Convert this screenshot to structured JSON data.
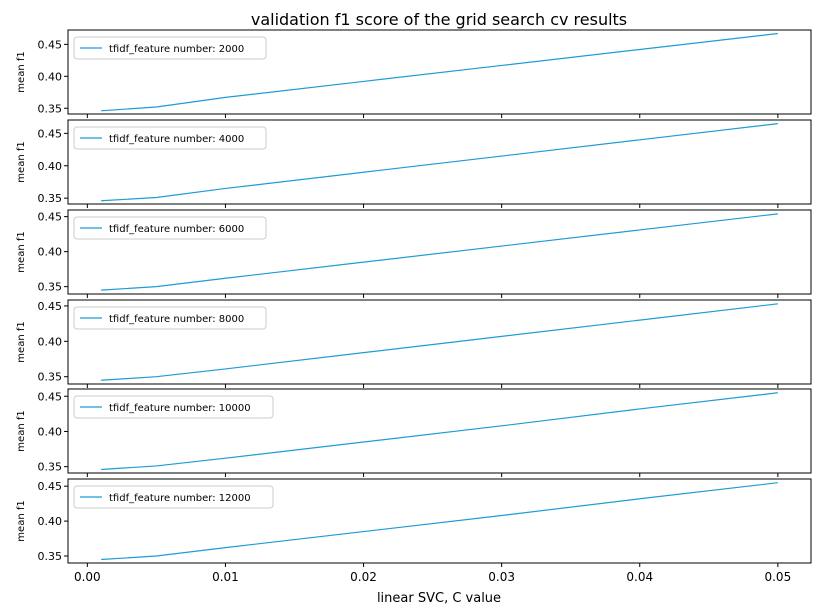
{
  "title": "validation f1 score of the grid search cv results",
  "chart_data": {
    "type": "line",
    "title": "validation f1 score of the grid search cv results",
    "xlabel": "linear SVC, C value",
    "ylabel": "mean f1",
    "x": [
      0.001,
      0.005,
      0.01,
      0.02,
      0.03,
      0.04,
      0.05
    ],
    "xlim": [
      -0.0014,
      0.0524
    ],
    "xticks": [
      0.0,
      0.01,
      0.02,
      0.03,
      0.04,
      0.05
    ],
    "xtick_labels": [
      "0.00",
      "0.01",
      "0.02",
      "0.03",
      "0.04",
      "0.05"
    ],
    "line_color": "#1f9bd6",
    "legend_position": "upper left",
    "panels": [
      {
        "legend": "tfidf_feature number: 2000",
        "values": [
          0.346,
          0.352,
          0.367,
          0.392,
          0.417,
          0.442,
          0.467
        ],
        "ylim": [
          0.341,
          0.4725
        ],
        "yticks": [
          0.35,
          0.4,
          0.45
        ],
        "ytick_labels": [
          "0.35",
          "0.40",
          "0.45"
        ]
      },
      {
        "legend": "tfidf_feature number: 4000",
        "values": [
          0.346,
          0.351,
          0.365,
          0.39,
          0.415,
          0.44,
          0.465
        ],
        "ylim": [
          0.341,
          0.4706
        ],
        "yticks": [
          0.35,
          0.4,
          0.45
        ],
        "ytick_labels": [
          "0.35",
          "0.40",
          "0.45"
        ]
      },
      {
        "legend": "tfidf_feature number: 6000",
        "values": [
          0.345,
          0.35,
          0.362,
          0.385,
          0.408,
          0.431,
          0.454
        ],
        "ylim": [
          0.3395,
          0.4595
        ],
        "yticks": [
          0.35,
          0.4,
          0.45
        ],
        "ytick_labels": [
          "0.35",
          "0.40",
          "0.45"
        ]
      },
      {
        "legend": "tfidf_feature number: 8000",
        "values": [
          0.345,
          0.35,
          0.361,
          0.384,
          0.407,
          0.43,
          0.453
        ],
        "ylim": [
          0.3397,
          0.4584
        ],
        "yticks": [
          0.35,
          0.4,
          0.45
        ],
        "ytick_labels": [
          "0.35",
          "0.40",
          "0.45"
        ]
      },
      {
        "legend": "tfidf_feature number: 10000",
        "values": [
          0.346,
          0.351,
          0.362,
          0.385,
          0.408,
          0.432,
          0.455
        ],
        "ylim": [
          0.341,
          0.4603
        ],
        "yticks": [
          0.35,
          0.4,
          0.45
        ],
        "ytick_labels": [
          "0.35",
          "0.40",
          "0.45"
        ]
      },
      {
        "legend": "tfidf_feature number: 12000",
        "values": [
          0.345,
          0.35,
          0.362,
          0.385,
          0.408,
          0.432,
          0.455
        ],
        "ylim": [
          0.34,
          0.4603
        ],
        "yticks": [
          0.35,
          0.4,
          0.45
        ],
        "ytick_labels": [
          "0.35",
          "0.40",
          "0.45"
        ]
      }
    ]
  }
}
